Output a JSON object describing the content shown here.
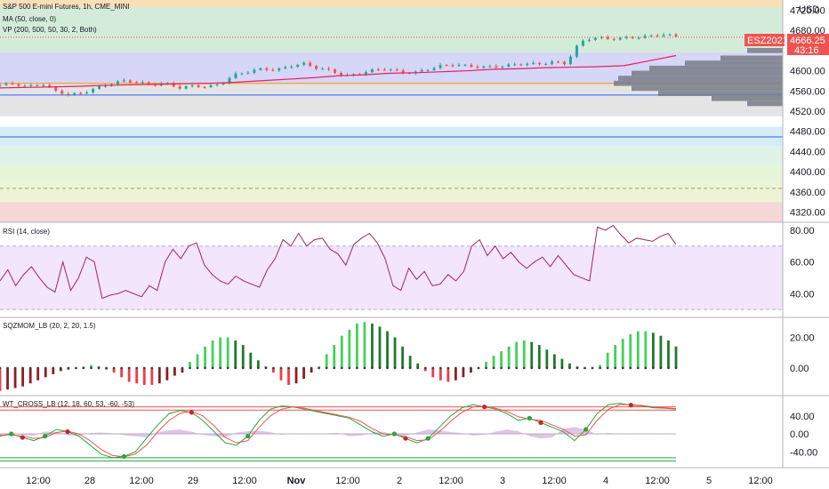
{
  "chart_data": [
    {
      "type": "candlestick",
      "title": "S&P 500 E-mini Futures, 1h, CME_MINI",
      "indicators": [
        "MA (50, close, 0)",
        "VP (200, 500, 50, 30, 2, Both)"
      ],
      "currency": "USD",
      "symbol_badge": "ESZ2021",
      "last_price": "4666.25",
      "countdown": "43:16",
      "ylim": [
        4300,
        4740
      ],
      "y_ticks": [
        "4720.00",
        "4680.00",
        "4640.00",
        "4600.00",
        "4560.00",
        "4520.00",
        "4480.00",
        "4440.00",
        "4400.00",
        "4360.00",
        "4320.00"
      ],
      "y_tick_values": [
        4720,
        4680,
        4640,
        4600,
        4560,
        4520,
        4480,
        4440,
        4400,
        4360,
        4320
      ],
      "price_path": [
        4572,
        4574,
        4568,
        4575,
        4560,
        4552,
        4556,
        4566,
        4574,
        4580,
        4577,
        4572,
        4575,
        4566,
        4570,
        4568,
        4574,
        4592,
        4598,
        4604,
        4601,
        4609,
        4614,
        4605,
        4600,
        4589,
        4594,
        4601,
        4604,
        4597,
        4596,
        4603,
        4610,
        4612,
        4609,
        4607,
        4608,
        4611,
        4614,
        4613,
        4617,
        4614,
        4656,
        4666,
        4663,
        4664,
        4666,
        4668,
        4672,
        4668
      ],
      "ma_path": [
        4566,
        4567,
        4568,
        4569,
        4571,
        4572,
        4573,
        4574,
        4575,
        4577,
        4580,
        4583,
        4586,
        4590,
        4592,
        4595,
        4596,
        4598,
        4600,
        4603,
        4604,
        4606,
        4607,
        4608,
        4610,
        4620,
        4630
      ],
      "horizontal_levels": [
        4575,
        4552,
        4469,
        4367
      ],
      "zones": [
        {
          "from": 4740,
          "to": 4725,
          "color": "#f7e0b8"
        },
        {
          "from": 4725,
          "to": 4636,
          "color": "#d3ecd9"
        },
        {
          "from": 4636,
          "to": 4573,
          "color": "#d6d6f7"
        },
        {
          "from": 4573,
          "to": 4510,
          "color": "#e4e4e4"
        },
        {
          "from": 4489,
          "to": 4450,
          "color": "#d6ecf7"
        },
        {
          "from": 4450,
          "to": 4413,
          "color": "#dff3ea"
        },
        {
          "from": 4413,
          "to": 4376,
          "color": "#e5f6d8"
        },
        {
          "from": 4376,
          "to": 4340,
          "color": "#eef4d3"
        },
        {
          "from": 4340,
          "to": 4300,
          "color": "#f7d8d8"
        }
      ],
      "colors": {
        "up": "#26a69a",
        "down": "#ef5350",
        "ma": "#e91e63",
        "volume_profile": "#787b86"
      }
    },
    {
      "type": "line",
      "title": "RSI (14, close)",
      "ylim": [
        25,
        85
      ],
      "y_ticks": [
        "80.00",
        "60.00",
        "40.00"
      ],
      "y_tick_values": [
        80,
        60,
        40
      ],
      "band": [
        30,
        70
      ],
      "values": [
        48,
        55,
        45,
        52,
        57,
        50,
        44,
        41,
        60,
        42,
        50,
        63,
        60,
        37,
        39,
        40,
        42,
        40,
        38,
        45,
        42,
        60,
        68,
        62,
        70,
        72,
        58,
        52,
        48,
        46,
        51,
        48,
        46,
        44,
        55,
        62,
        74,
        70,
        78,
        70,
        74,
        75,
        68,
        65,
        58,
        71,
        75,
        78,
        72,
        62,
        45,
        42,
        56,
        49,
        54,
        45,
        46,
        52,
        48,
        54,
        70,
        74,
        64,
        70,
        62,
        66,
        60,
        56,
        60,
        63,
        57,
        64,
        58,
        52,
        50,
        48,
        82,
        80,
        83,
        77,
        72,
        75,
        74,
        73,
        76,
        78,
        71
      ]
    },
    {
      "type": "histogram",
      "title": "SQZMOM_LB (20, 2, 20, 1.5)",
      "ylim": [
        -18,
        33
      ],
      "y_ticks": [
        "20.00",
        "0.00"
      ],
      "y_tick_values": [
        20,
        0
      ],
      "values": [
        -15,
        -14,
        -13,
        -12,
        -10,
        -8,
        -6,
        -4,
        -2,
        -1,
        0,
        1,
        2,
        1,
        -1,
        -3,
        -6,
        -9,
        -10,
        -11,
        -11,
        -10,
        -8,
        -5,
        -3,
        4,
        9,
        14,
        18,
        20,
        20,
        18,
        15,
        10,
        5,
        1,
        -3,
        -8,
        -11,
        -10,
        -7,
        -3,
        1,
        9,
        15,
        21,
        25,
        29,
        30,
        29,
        27,
        24,
        20,
        14,
        8,
        3,
        -2,
        -6,
        -8,
        -9,
        -8,
        -6,
        -3,
        0,
        4,
        8,
        11,
        14,
        17,
        18,
        17,
        15,
        12,
        9,
        6,
        3,
        1,
        0,
        0,
        2,
        10,
        15,
        19,
        22,
        24,
        24,
        23,
        21,
        18,
        14
      ]
    },
    {
      "type": "line",
      "title": "WT_CROSS_LB (12, 18, 60, 53, -60, -53)",
      "ylim": [
        -75,
        85
      ],
      "y_ticks": [
        "40.00",
        "0.00",
        "-40.00"
      ],
      "y_tick_values": [
        40,
        0,
        -40
      ],
      "levels": [
        60,
        53,
        -53,
        -60
      ],
      "wt1": [
        -5,
        0,
        -8,
        -15,
        -5,
        10,
        5,
        -5,
        -25,
        -45,
        -53,
        -50,
        -40,
        -10,
        20,
        45,
        52,
        48,
        30,
        5,
        -20,
        -25,
        -5,
        30,
        55,
        62,
        60,
        55,
        50,
        45,
        40,
        35,
        20,
        5,
        -5,
        0,
        -10,
        -20,
        -10,
        15,
        40,
        58,
        65,
        60,
        55,
        45,
        30,
        35,
        25,
        15,
        5,
        -15,
        10,
        45,
        65,
        68,
        64,
        62,
        58,
        57,
        55
      ],
      "wt2": [
        -3,
        -2,
        -5,
        -10,
        -8,
        3,
        6,
        0,
        -15,
        -35,
        -48,
        -51,
        -45,
        -25,
        5,
        30,
        46,
        50,
        40,
        18,
        -8,
        -20,
        -15,
        15,
        40,
        55,
        60,
        57,
        52,
        47,
        42,
        37,
        28,
        12,
        0,
        -2,
        -6,
        -15,
        -13,
        5,
        28,
        48,
        60,
        62,
        57,
        50,
        38,
        33,
        30,
        20,
        10,
        -5,
        -2,
        30,
        55,
        65,
        65,
        63,
        60,
        58,
        56
      ],
      "area": [
        -2,
        2,
        -3,
        -4,
        5,
        4,
        -3,
        -4,
        2,
        3,
        1,
        -3,
        -5,
        -8,
        4,
        8,
        10,
        5,
        -2,
        -5,
        -8,
        3,
        6,
        7,
        4,
        -2,
        0,
        1,
        1,
        1,
        2,
        -5,
        -4,
        2,
        5,
        -3,
        -4,
        3,
        10,
        8,
        4,
        2,
        -4,
        -2,
        5,
        10,
        6,
        -5,
        -10,
        -8,
        12,
        15,
        10,
        -2,
        2,
        0,
        1,
        0,
        1,
        0,
        1
      ]
    }
  ],
  "x_ticks": [
    "12:00",
    "28",
    "12:00",
    "29",
    "12:00",
    "Nov",
    "12:00",
    "2",
    "12:00",
    "3",
    "12:00",
    "4",
    "12:00",
    "5",
    "12:00"
  ],
  "x_ticks_bold": [
    false,
    false,
    false,
    false,
    false,
    true,
    false,
    false,
    false,
    false,
    false,
    false,
    false,
    false,
    false
  ]
}
